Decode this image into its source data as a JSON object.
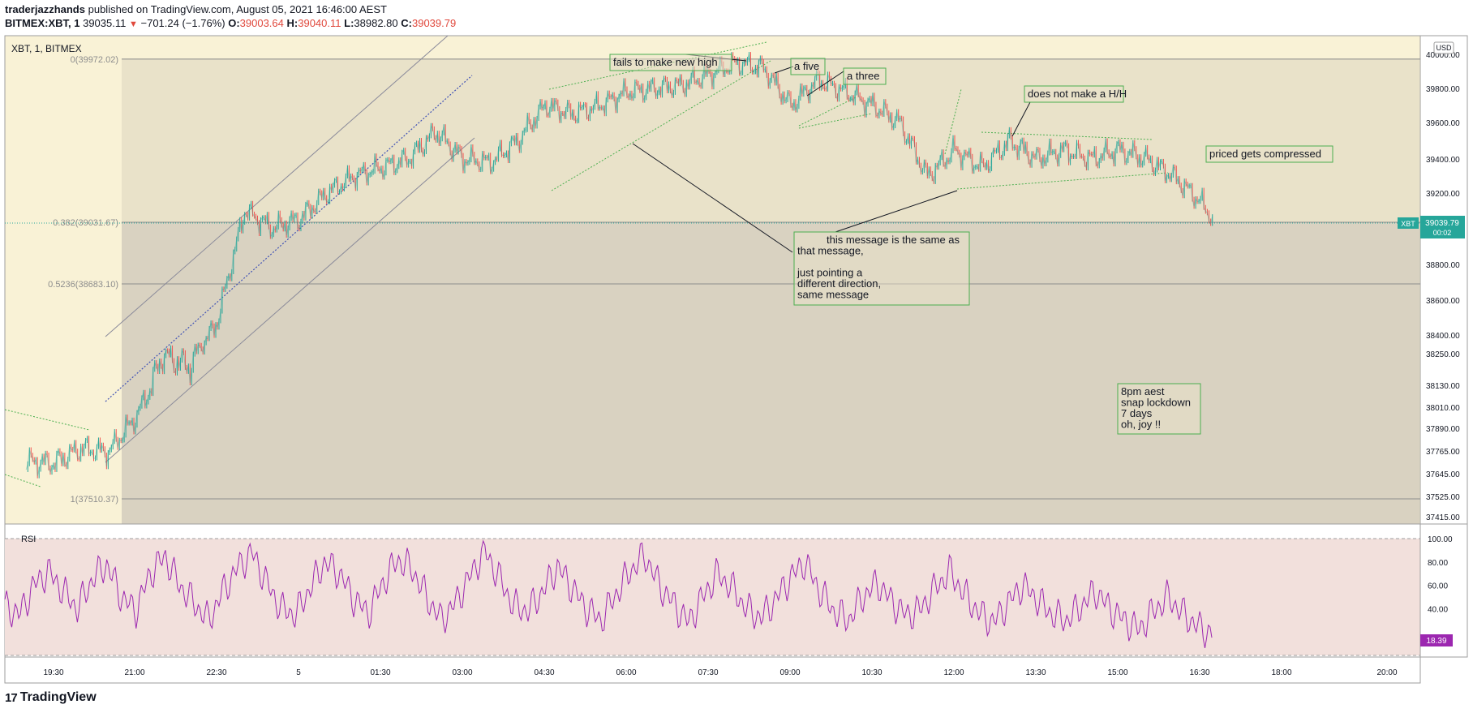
{
  "header": {
    "author": "traderjazzhands",
    "published_text": "published on TradingView.com, August 05, 2021 16:46:00 AEST",
    "symbol_full": "BITMEX:XBT, 1",
    "last": "39035.11",
    "change": "−701.24 (−1.76%)",
    "o_label": "O:",
    "o": "39003.64",
    "h_label": "H:",
    "h": "39040.11",
    "l_label": "L:",
    "l": "38982.80",
    "c_label": "C:",
    "c": "39039.79"
  },
  "chart_title": "XBT, 1, BITMEX",
  "currency": "USD",
  "price_tag": {
    "symbol": "XBT",
    "price": "39039.79",
    "countdown": "00:02"
  },
  "rsi_tag": "18.39",
  "rsi_label": "RSI",
  "fib_labels": [
    "0(39972.02)",
    "0.382(39031.67)",
    "0.5236(38683.10)",
    "1(37510.37)"
  ],
  "annotations": [
    "fails to make new high",
    "a five",
    "a three",
    "does not make a H/H",
    "priced gets compressed",
    "this message is the same as\nthat message,\n\njust pointing a\ndifferent direction,\nsame message",
    "8pm aest\nsnap lockdown\n7 days\noh, joy !!"
  ],
  "brand": "TradingView",
  "brand_logo": "17",
  "colors": {
    "price_up": "#26a69a",
    "price_down": "#ef5350",
    "rsi_line": "#9c27b0",
    "annotation_border": "#4caf50",
    "fib_zone_top": "#e9e2c9",
    "fib_zone_bottom": "#d9d2c1",
    "pre_zone": "#f9f2d6",
    "rsi_band": "#f2e0dc"
  },
  "chart_data": [
    {
      "type": "candlestick",
      "title": "XBT, 1, BITMEX",
      "xlabel": "",
      "ylabel": "",
      "x_ticks": [
        "19:30",
        "21:00",
        "22:30",
        "5",
        "01:30",
        "03:00",
        "04:30",
        "06:00",
        "07:30",
        "09:00",
        "10:30",
        "12:00",
        "13:30",
        "15:00",
        "16:30",
        "18:00",
        "20:00"
      ],
      "y_ticks": [
        40000.0,
        39800.0,
        39600.0,
        39400.0,
        39200.0,
        38800.0,
        38600.0,
        38400.0,
        38250.0,
        38130.0,
        38010.0,
        37890.0,
        37765.0,
        37645.0,
        37525.0,
        37415.0
      ],
      "last_price": 39039.79,
      "fibonacci": [
        {
          "level": "0",
          "price": 39972.02
        },
        {
          "level": "0.382",
          "price": 39031.67
        },
        {
          "level": "0.5236",
          "price": 38683.1
        },
        {
          "level": "1",
          "price": 37510.37
        }
      ],
      "price_path": [
        [
          "19:00",
          37710
        ],
        [
          "19:30",
          37700
        ],
        [
          "20:00",
          37780
        ],
        [
          "20:30",
          37760
        ],
        [
          "21:00",
          37950
        ],
        [
          "21:30",
          38250
        ],
        [
          "22:00",
          38200
        ],
        [
          "22:30",
          38480
        ],
        [
          "23:00",
          39100
        ],
        [
          "23:30",
          39000
        ],
        [
          "00:00",
          39050
        ],
        [
          "00:30",
          39200
        ],
        [
          "01:00",
          39300
        ],
        [
          "01:30",
          39350
        ],
        [
          "02:00",
          39400
        ],
        [
          "02:30",
          39550
        ],
        [
          "03:00",
          39400
        ],
        [
          "03:30",
          39380
        ],
        [
          "04:00",
          39500
        ],
        [
          "04:30",
          39700
        ],
        [
          "05:00",
          39650
        ],
        [
          "05:30",
          39700
        ],
        [
          "06:00",
          39780
        ],
        [
          "06:30",
          39800
        ],
        [
          "07:00",
          39820
        ],
        [
          "07:30",
          39880
        ],
        [
          "08:00",
          39950
        ],
        [
          "08:30",
          39920
        ],
        [
          "09:00",
          39700
        ],
        [
          "09:30",
          39850
        ],
        [
          "10:00",
          39780
        ],
        [
          "10:30",
          39700
        ],
        [
          "11:00",
          39600
        ],
        [
          "11:30",
          39300
        ],
        [
          "12:00",
          39450
        ],
        [
          "12:30",
          39350
        ],
        [
          "13:00",
          39500
        ],
        [
          "13:30",
          39400
        ],
        [
          "14:00",
          39450
        ],
        [
          "14:30",
          39400
        ],
        [
          "15:00",
          39450
        ],
        [
          "15:30",
          39400
        ],
        [
          "16:00",
          39300
        ],
        [
          "16:30",
          39150
        ],
        [
          "16:45",
          39040
        ]
      ]
    },
    {
      "type": "line",
      "title": "RSI",
      "ylim": [
        0,
        100
      ],
      "y_ticks": [
        100.0,
        80.0,
        60.0,
        40.0
      ],
      "last_value": 18.39,
      "approx_values": [
        42,
        35,
        60,
        72,
        55,
        40,
        65,
        78,
        50,
        38,
        70,
        85,
        60,
        45,
        30,
        55,
        75,
        88,
        62,
        40,
        35,
        58,
        80,
        70,
        48,
        36,
        62,
        82,
        74,
        50,
        30,
        45,
        68,
        90,
        66,
        42,
        38,
        55,
        76,
        58,
        40,
        30,
        52,
        72,
        86,
        60,
        44,
        28,
        50,
        70,
        58,
        40,
        32,
        48,
        66,
        80,
        56,
        38,
        30,
        50,
        62,
        46,
        34,
        40,
        58,
        72,
        52,
        36,
        28,
        45,
        60,
        48,
        35,
        30,
        42,
        55,
        40,
        30,
        22,
        38,
        50,
        36,
        25,
        18
      ]
    }
  ]
}
